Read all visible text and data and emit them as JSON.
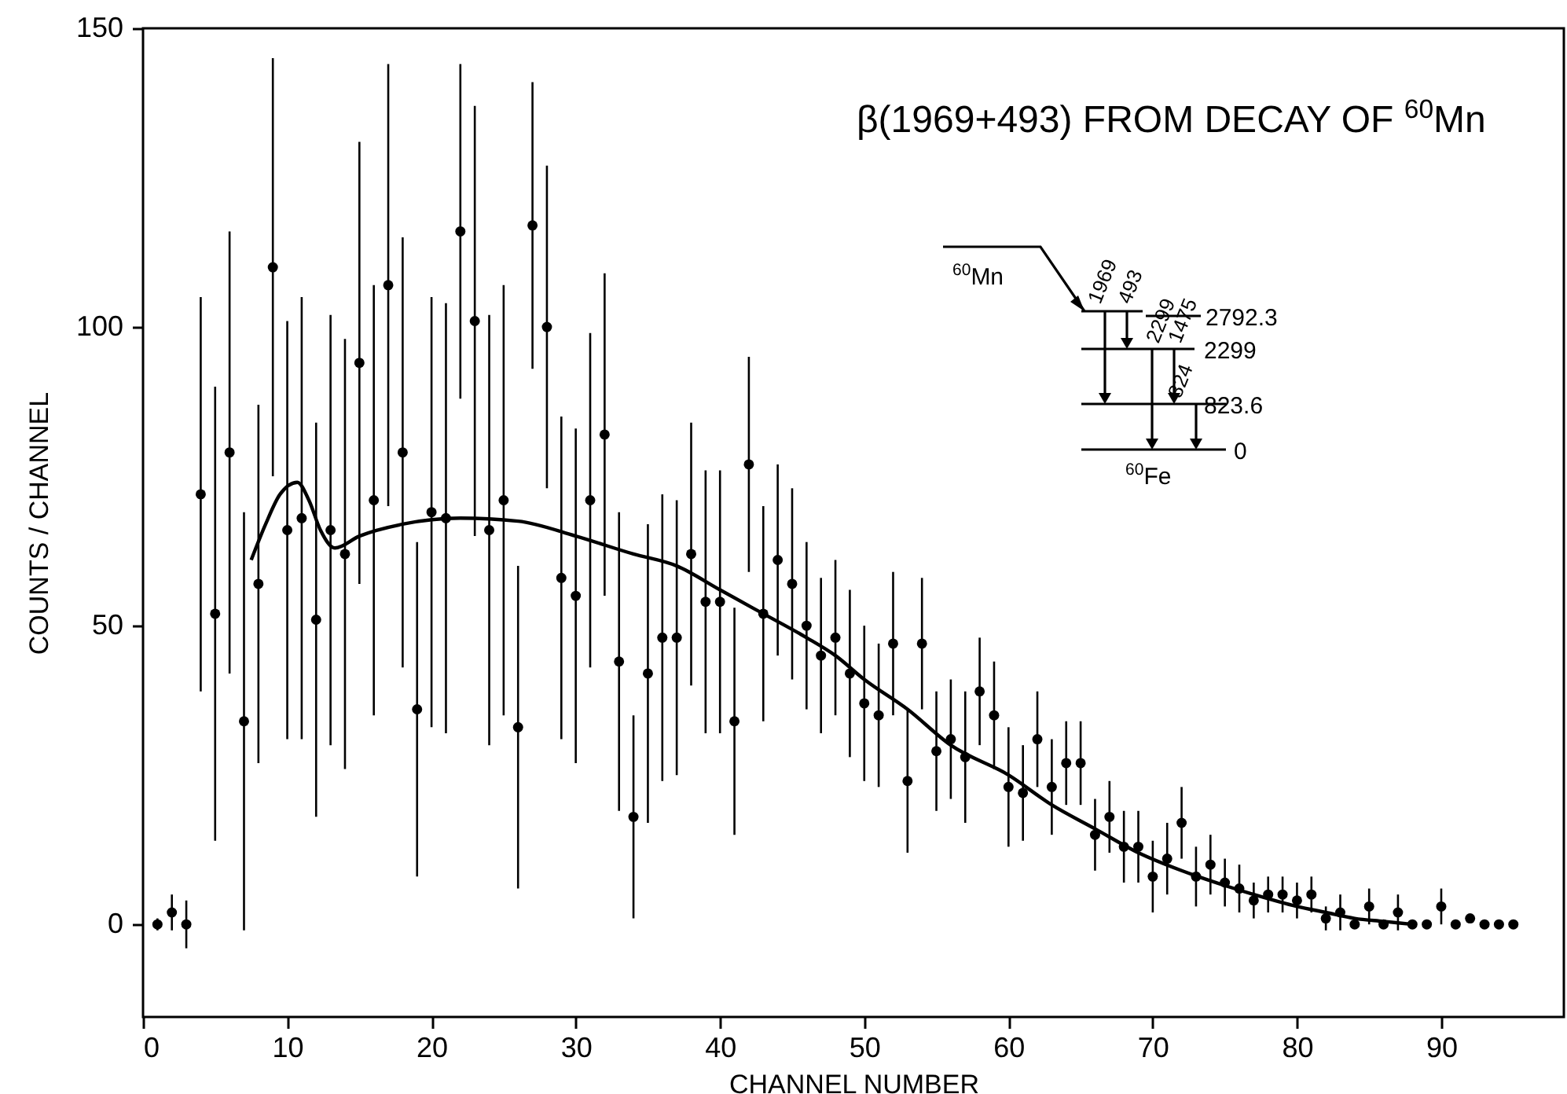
{
  "chart_data": {
    "type": "scatter",
    "xlabel": "CHANNEL NUMBER",
    "ylabel": "COUNTS / CHANNEL",
    "xlim": [
      0,
      98.5
    ],
    "xticks": [
      0,
      10,
      20,
      30,
      40,
      50,
      60,
      70,
      80,
      90
    ],
    "ylim": [
      -15.5,
      150
    ],
    "yticks": [
      0,
      50,
      100,
      150
    ],
    "grid": false,
    "annotations": [
      "β(1969+493) FROM DECAY OF $^{60}$Mn",
      "$^{60}$Mn",
      "$^{60}$Fe",
      "2792.3",
      "2299",
      "823.6",
      "0",
      "1969",
      "493",
      "2299",
      "1475",
      "824"
    ],
    "series": [
      {
        "color": "#000000",
        "marker": "circle",
        "x": [
          1,
          2,
          3,
          4,
          5,
          6,
          7,
          8,
          9,
          10,
          11,
          12,
          13,
          14,
          15,
          16,
          17,
          18,
          19,
          20,
          21,
          22,
          23,
          24,
          25,
          26,
          27,
          28,
          29,
          30,
          31,
          32,
          33,
          34,
          35,
          36,
          37,
          38,
          39,
          40,
          41,
          42,
          43,
          44,
          45,
          46,
          47,
          48,
          49,
          50,
          51,
          52,
          53,
          54,
          55,
          56,
          57,
          58,
          59,
          60,
          61,
          62,
          63,
          64,
          65,
          66,
          67,
          68,
          69,
          70,
          71,
          72,
          73,
          74,
          75,
          76,
          77,
          78,
          79,
          80,
          81,
          82,
          83,
          84,
          85,
          86,
          87,
          88,
          89,
          90,
          91,
          92,
          93,
          94,
          95
        ],
        "values": [
          0,
          2,
          0,
          72,
          52,
          79,
          34,
          57,
          110,
          66,
          68,
          51,
          66,
          62,
          94,
          71,
          107,
          79,
          36,
          69,
          68,
          116,
          101,
          66,
          71,
          33,
          117,
          100,
          58,
          55,
          71,
          82,
          44,
          18,
          42,
          48,
          48,
          62,
          54,
          54,
          34,
          77,
          52,
          61,
          57,
          50,
          45,
          48,
          42,
          37,
          35,
          47,
          24,
          47,
          29,
          31,
          28,
          39,
          35,
          23,
          22,
          31,
          23,
          27,
          27,
          15,
          18,
          13,
          13,
          8,
          11,
          17,
          8,
          10,
          7,
          6,
          4,
          5,
          5,
          4,
          5,
          1,
          2,
          0,
          3,
          0,
          2,
          0,
          0,
          3,
          0,
          1,
          0,
          0,
          0
        ],
        "errors": [
          1,
          3,
          4,
          33,
          38,
          37,
          35,
          30,
          35,
          35,
          37,
          33,
          36,
          36,
          37,
          36,
          37,
          36,
          28,
          36,
          36,
          28,
          36,
          36,
          36,
          27,
          24,
          27,
          27,
          28,
          28,
          27,
          25,
          17,
          25,
          24,
          23,
          22,
          22,
          22,
          19,
          18,
          18,
          16,
          16,
          14,
          13,
          13,
          14,
          13,
          12,
          12,
          12,
          11,
          10,
          10,
          11,
          9,
          9,
          10,
          8,
          8,
          8,
          7,
          7,
          6,
          6,
          6,
          6,
          6,
          6,
          6,
          5,
          5,
          4,
          4,
          3,
          3,
          3,
          3,
          3,
          2,
          3,
          null,
          3,
          null,
          3,
          null,
          null,
          3,
          null,
          null,
          null,
          null,
          null
        ]
      },
      {
        "type": "line",
        "color": "#000000",
        "marker": "none",
        "x": [
          7.5,
          8.5,
          9.5,
          10.7,
          11.5,
          12.3,
          13.3,
          15,
          18,
          22,
          26,
          30,
          34,
          37,
          40,
          43,
          46,
          48,
          50,
          53,
          56,
          60,
          63,
          66,
          69,
          72,
          75,
          77,
          80,
          82,
          84,
          86,
          88
        ],
        "values": [
          61,
          67,
          72,
          74,
          71,
          66,
          63,
          65,
          67,
          68,
          67.5,
          65,
          62,
          60,
          56,
          52,
          48,
          45,
          41,
          36,
          30,
          25,
          20,
          16,
          12,
          9,
          6.5,
          5,
          3,
          2,
          1,
          0.5,
          0
        ]
      }
    ]
  }
}
